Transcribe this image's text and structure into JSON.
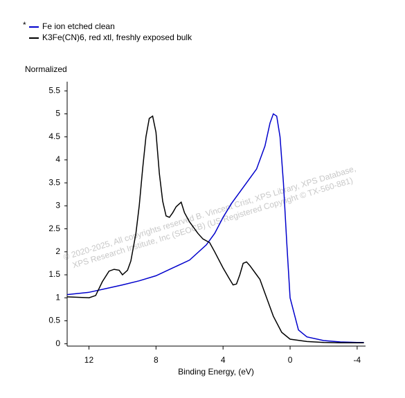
{
  "chart_data": {
    "type": "line",
    "legend_marker": "*",
    "ylabel": "Normalized",
    "xlabel": "Binding Energy, (eV)",
    "watermark": [
      "© 2020-2025,  All copyrights reserved    B. Vincent Crist,  XPS Library, XPS Database,",
      "XPS Research Institute, Inc (SEOCB)   (US Registered Copyright © TX-560-881)"
    ],
    "xlim": [
      13.3,
      -4.5
    ],
    "ylim": [
      -0.05,
      5.7
    ],
    "xticks": [
      12,
      8,
      4,
      0,
      -4
    ],
    "yticks": [
      0,
      0.5,
      1,
      1.5,
      2,
      2.5,
      3,
      3.5,
      4,
      4.5,
      5,
      5.5
    ],
    "series": [
      {
        "name": "Fe ion etched clean",
        "color": "#0000cc",
        "x": [
          13.3,
          12,
          11,
          10,
          9,
          8,
          7,
          6,
          5,
          4.5,
          4,
          3.5,
          3,
          2.5,
          2,
          1.5,
          1.2,
          1.0,
          0.8,
          0.6,
          0.4,
          0.2,
          0,
          -0.5,
          -1,
          -2,
          -3,
          -4,
          -4.4
        ],
        "values": [
          1.07,
          1.12,
          1.2,
          1.28,
          1.37,
          1.48,
          1.65,
          1.82,
          2.15,
          2.4,
          2.75,
          3.05,
          3.3,
          3.55,
          3.8,
          4.3,
          4.8,
          5.0,
          4.95,
          4.5,
          3.5,
          2.2,
          1.0,
          0.3,
          0.15,
          0.07,
          0.04,
          0.03,
          0.03
        ]
      },
      {
        "name": "K3Fe(CN)6, red xtl, freshly exposed bulk",
        "color": "#000000",
        "x": [
          13.3,
          12,
          11.6,
          11.2,
          10.8,
          10.5,
          10.2,
          10,
          9.7,
          9.5,
          9.2,
          9,
          8.8,
          8.6,
          8.4,
          8.2,
          8,
          7.8,
          7.6,
          7.4,
          7.2,
          7,
          6.8,
          6.5,
          6.3,
          6,
          5.5,
          5.2,
          4.8,
          4.5,
          4,
          3.6,
          3.4,
          3.2,
          3,
          2.8,
          2.6,
          2.4,
          2,
          1.8,
          1.5,
          1,
          0.5,
          0,
          -1,
          -2,
          -3,
          -4,
          -4.4
        ],
        "values": [
          1.02,
          1.0,
          1.05,
          1.35,
          1.58,
          1.62,
          1.6,
          1.5,
          1.6,
          1.8,
          2.4,
          3.0,
          3.8,
          4.5,
          4.9,
          4.95,
          4.6,
          3.7,
          3.1,
          2.78,
          2.75,
          2.85,
          2.98,
          3.08,
          2.85,
          2.65,
          2.4,
          2.28,
          2.2,
          2.0,
          1.65,
          1.4,
          1.28,
          1.3,
          1.5,
          1.75,
          1.78,
          1.7,
          1.5,
          1.4,
          1.1,
          0.6,
          0.25,
          0.1,
          0.05,
          0.03,
          0.02,
          0.02,
          0.02
        ]
      }
    ]
  }
}
